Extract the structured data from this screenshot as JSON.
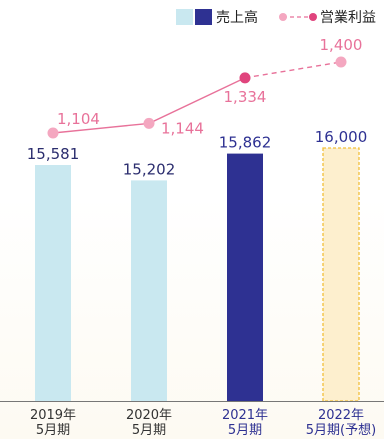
{
  "chart_data": {
    "type": "bar",
    "categories": [
      [
        "2019年",
        "5月期"
      ],
      [
        "2020年",
        "5月期"
      ],
      [
        "2021年",
        "5月期"
      ],
      [
        "2022年",
        "5月期(予想)"
      ]
    ],
    "series": [
      {
        "name": "売上高",
        "type": "bar",
        "values": [
          15581,
          15202,
          15862,
          16000
        ],
        "labels": [
          "15,581",
          "15,202",
          "15,862",
          "16,000"
        ],
        "colors": [
          "#c9e8f0",
          "#c9e8f0",
          "#2e3192",
          "#fdefce"
        ],
        "forecast": [
          false,
          false,
          false,
          true
        ]
      },
      {
        "name": "営業利益",
        "type": "line",
        "values": [
          1104,
          1144,
          1334,
          1400
        ],
        "labels": [
          "1,104",
          "1,144",
          "1,334",
          "1,400"
        ],
        "color": "#e8729a",
        "forecast": [
          false,
          false,
          false,
          true
        ]
      }
    ],
    "legend": {
      "position": "top-right"
    },
    "grid": false
  },
  "colors": {
    "bar_past": "#c9e8f0",
    "bar_current": "#2e3192",
    "bar_forecast_fill": "#fdefce",
    "bar_forecast_border": "#f2c03a",
    "line": "#e8729a",
    "line_point_past": "#f4a7c0",
    "line_point_current": "#e0447d",
    "label_past": "#2b2d6e",
    "label_current": "#2e3192",
    "label_forecast": "#2e3192",
    "category_text": "#333333",
    "category_current": "#2e3192",
    "axis": "#777777"
  }
}
